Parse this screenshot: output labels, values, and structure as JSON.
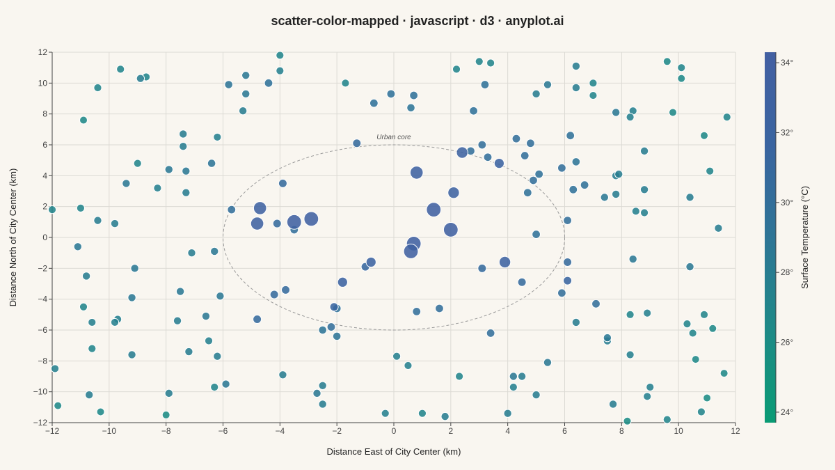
{
  "title": "scatter-color-mapped · javascript · d3 · anyplot.ai",
  "chart_data": {
    "type": "scatter",
    "xlabel": "Distance East of City Center (km)",
    "ylabel": "Distance North of City Center (km)",
    "colorbar_label": "Surface Temperature (°C)",
    "xlim": [
      -12,
      12
    ],
    "ylim": [
      -12,
      12
    ],
    "xticks": [
      "−12",
      "−10",
      "−8",
      "−6",
      "−4",
      "−2",
      "0",
      "2",
      "4",
      "6",
      "8",
      "10",
      "12"
    ],
    "yticks": [
      "−12",
      "−10",
      "−8",
      "−6",
      "−4",
      "−2",
      "0",
      "2",
      "4",
      "6",
      "8",
      "10",
      "12"
    ],
    "color_range": [
      23.7,
      34.3
    ],
    "colorbar_ticks": [
      "24°",
      "26°",
      "28°",
      "30°",
      "32°",
      "34°"
    ],
    "colormap": [
      "#0a9b74",
      "#1e8a87",
      "#2e7596",
      "#3a64a0",
      "#4360a2"
    ],
    "grid": true,
    "annotation": {
      "text": "Urban core",
      "cx": 0,
      "cy": 0,
      "rx": 6,
      "ry": 6
    },
    "points": [
      {
        "x": 0.8,
        "y": 4.2,
        "t": 33.0
      },
      {
        "x": 2.4,
        "y": 5.5,
        "t": 32.5
      },
      {
        "x": 3.7,
        "y": 4.8,
        "t": 32.0
      },
      {
        "x": 2.1,
        "y": 2.9,
        "t": 32.5
      },
      {
        "x": 1.4,
        "y": 1.8,
        "t": 33.5
      },
      {
        "x": 2.0,
        "y": 0.5,
        "t": 33.5
      },
      {
        "x": 0.7,
        "y": -0.4,
        "t": 33.5
      },
      {
        "x": 0.6,
        "y": -0.9,
        "t": 33.5
      },
      {
        "x": -0.8,
        "y": -1.6,
        "t": 32.0
      },
      {
        "x": -1.8,
        "y": -2.9,
        "t": 32.0
      },
      {
        "x": -2.1,
        "y": -4.5,
        "t": 31.5
      },
      {
        "x": -3.5,
        "y": 1.0,
        "t": 33.5
      },
      {
        "x": -2.9,
        "y": 1.2,
        "t": 33.5
      },
      {
        "x": -4.8,
        "y": 0.9,
        "t": 33.0
      },
      {
        "x": -4.7,
        "y": 1.9,
        "t": 33.0
      },
      {
        "x": 3.9,
        "y": -1.6,
        "t": 32.5
      },
      {
        "x": 6.1,
        "y": -2.8,
        "t": 31.5
      },
      {
        "x": 3.3,
        "y": 5.2,
        "t": 30.0
      },
      {
        "x": 2.7,
        "y": 5.6,
        "t": 30.0
      },
      {
        "x": 3.1,
        "y": 6.0,
        "t": 30.0
      },
      {
        "x": -1.3,
        "y": 6.1,
        "t": 30.5
      },
      {
        "x": -3.9,
        "y": 3.5,
        "t": 30.5
      },
      {
        "x": -4.1,
        "y": 0.9,
        "t": 30.5
      },
      {
        "x": -3.5,
        "y": 0.5,
        "t": 30.0
      },
      {
        "x": -5.7,
        "y": 1.8,
        "t": 30.0
      },
      {
        "x": -1.0,
        "y": -1.9,
        "t": 31.0
      },
      {
        "x": -2.0,
        "y": -4.6,
        "t": 29.5
      },
      {
        "x": -2.2,
        "y": -5.8,
        "t": 30.0
      },
      {
        "x": -2.5,
        "y": -6.0,
        "t": 29.0
      },
      {
        "x": -2.0,
        "y": -6.4,
        "t": 29.0
      },
      {
        "x": -3.8,
        "y": -3.4,
        "t": 30.5
      },
      {
        "x": -4.2,
        "y": -3.7,
        "t": 30.5
      },
      {
        "x": -4.8,
        "y": -5.3,
        "t": 30.5
      },
      {
        "x": 0.8,
        "y": -4.8,
        "t": 30.0
      },
      {
        "x": 1.6,
        "y": -4.6,
        "t": 30.0
      },
      {
        "x": 3.4,
        "y": -6.2,
        "t": 30.0
      },
      {
        "x": 3.1,
        "y": -2.0,
        "t": 30.5
      },
      {
        "x": 4.5,
        "y": -2.9,
        "t": 30.5
      },
      {
        "x": 6.1,
        "y": -1.6,
        "t": 30.5
      },
      {
        "x": 5.9,
        "y": -3.6,
        "t": 30.0
      },
      {
        "x": 7.1,
        "y": -4.3,
        "t": 30.0
      },
      {
        "x": 5.0,
        "y": 0.2,
        "t": 29.5
      },
      {
        "x": 6.1,
        "y": 1.1,
        "t": 30.0
      },
      {
        "x": 4.7,
        "y": 2.9,
        "t": 29.5
      },
      {
        "x": 4.9,
        "y": 3.7,
        "t": 30.0
      },
      {
        "x": 5.1,
        "y": 4.1,
        "t": 29.5
      },
      {
        "x": 4.6,
        "y": 5.3,
        "t": 30.0
      },
      {
        "x": 4.8,
        "y": 6.1,
        "t": 30.0
      },
      {
        "x": 4.3,
        "y": 6.4,
        "t": 30.0
      },
      {
        "x": 5.9,
        "y": 4.5,
        "t": 30.0
      },
      {
        "x": 6.3,
        "y": 3.1,
        "t": 29.5
      },
      {
        "x": 6.7,
        "y": 3.4,
        "t": 29.5
      },
      {
        "x": 6.4,
        "y": 4.9,
        "t": 29.0
      },
      {
        "x": 6.2,
        "y": 6.6,
        "t": 29.5
      },
      {
        "x": 3.2,
        "y": 9.9,
        "t": 29.5
      },
      {
        "x": 2.8,
        "y": 8.2,
        "t": 29.5
      },
      {
        "x": 0.7,
        "y": 9.2,
        "t": 29.5
      },
      {
        "x": 0.6,
        "y": 8.4,
        "t": 29.0
      },
      {
        "x": -0.1,
        "y": 9.3,
        "t": 29.5
      },
      {
        "x": -0.7,
        "y": 8.7,
        "t": 29.5
      },
      {
        "x": -4.4,
        "y": 10.0,
        "t": 29.5
      },
      {
        "x": -5.2,
        "y": 10.5,
        "t": 28.5
      },
      {
        "x": -5.2,
        "y": 9.3,
        "t": 28.5
      },
      {
        "x": -5.3,
        "y": 8.2,
        "t": 28.0
      },
      {
        "x": -5.8,
        "y": 9.9,
        "t": 29.0
      },
      {
        "x": -4.0,
        "y": 10.8,
        "t": 27.5
      },
      {
        "x": -4.0,
        "y": 11.8,
        "t": 27.0
      },
      {
        "x": -1.7,
        "y": 10.0,
        "t": 27.0
      },
      {
        "x": 2.2,
        "y": 10.9,
        "t": 27.0
      },
      {
        "x": 3.0,
        "y": 11.4,
        "t": 27.0
      },
      {
        "x": 3.4,
        "y": 11.3,
        "t": 27.0
      },
      {
        "x": 5.0,
        "y": 9.3,
        "t": 28.0
      },
      {
        "x": 5.4,
        "y": 9.9,
        "t": 28.5
      },
      {
        "x": 6.4,
        "y": 9.7,
        "t": 28.0
      },
      {
        "x": 6.4,
        "y": 11.1,
        "t": 28.0
      },
      {
        "x": 7.0,
        "y": 10.0,
        "t": 27.0
      },
      {
        "x": 7.0,
        "y": 9.2,
        "t": 27.0
      },
      {
        "x": 7.8,
        "y": 8.1,
        "t": 28.5
      },
      {
        "x": 8.4,
        "y": 8.2,
        "t": 27.5
      },
      {
        "x": 8.3,
        "y": 7.8,
        "t": 27.5
      },
      {
        "x": 9.6,
        "y": 11.4,
        "t": 26.5
      },
      {
        "x": 10.1,
        "y": 11.0,
        "t": 27.0
      },
      {
        "x": 10.1,
        "y": 10.3,
        "t": 26.5
      },
      {
        "x": 9.8,
        "y": 8.1,
        "t": 26.5
      },
      {
        "x": 10.9,
        "y": 6.6,
        "t": 26.5
      },
      {
        "x": 11.7,
        "y": 7.8,
        "t": 27.0
      },
      {
        "x": 8.8,
        "y": 5.6,
        "t": 28.0
      },
      {
        "x": 7.8,
        "y": 4.0,
        "t": 28.0
      },
      {
        "x": 7.9,
        "y": 4.1,
        "t": 28.0
      },
      {
        "x": 7.4,
        "y": 2.6,
        "t": 28.5
      },
      {
        "x": 7.8,
        "y": 2.8,
        "t": 28.0
      },
      {
        "x": 8.8,
        "y": 3.1,
        "t": 28.0
      },
      {
        "x": 8.5,
        "y": 1.7,
        "t": 27.5
      },
      {
        "x": 8.8,
        "y": 1.6,
        "t": 27.5
      },
      {
        "x": 10.4,
        "y": 2.6,
        "t": 28.0
      },
      {
        "x": 11.1,
        "y": 4.3,
        "t": 27.0
      },
      {
        "x": 11.4,
        "y": 0.6,
        "t": 28.0
      },
      {
        "x": 8.4,
        "y": -1.4,
        "t": 28.5
      },
      {
        "x": 10.4,
        "y": -1.9,
        "t": 28.5
      },
      {
        "x": 10.9,
        "y": -5.0,
        "t": 27.0
      },
      {
        "x": 10.3,
        "y": -5.6,
        "t": 27.0
      },
      {
        "x": 10.5,
        "y": -6.2,
        "t": 27.0
      },
      {
        "x": 11.2,
        "y": -5.9,
        "t": 26.5
      },
      {
        "x": 8.3,
        "y": -5.0,
        "t": 27.0
      },
      {
        "x": 8.9,
        "y": -4.9,
        "t": 27.5
      },
      {
        "x": 6.4,
        "y": -5.5,
        "t": 28.0
      },
      {
        "x": 7.5,
        "y": -6.5,
        "t": 28.5
      },
      {
        "x": 7.5,
        "y": -6.7,
        "t": 28.0
      },
      {
        "x": 8.3,
        "y": -7.6,
        "t": 27.5
      },
      {
        "x": 5.4,
        "y": -8.1,
        "t": 28.5
      },
      {
        "x": 4.2,
        "y": -9.0,
        "t": 28.5
      },
      {
        "x": 4.5,
        "y": -9.0,
        "t": 28.0
      },
      {
        "x": 4.2,
        "y": -9.7,
        "t": 27.5
      },
      {
        "x": 5.0,
        "y": -10.2,
        "t": 28.0
      },
      {
        "x": 7.7,
        "y": -10.8,
        "t": 28.0
      },
      {
        "x": 9.0,
        "y": -9.7,
        "t": 27.5
      },
      {
        "x": 8.9,
        "y": -10.3,
        "t": 27.5
      },
      {
        "x": 10.6,
        "y": -7.9,
        "t": 26.5
      },
      {
        "x": 11.6,
        "y": -8.8,
        "t": 26.5
      },
      {
        "x": 11.0,
        "y": -10.4,
        "t": 26.0
      },
      {
        "x": 10.8,
        "y": -11.3,
        "t": 27.0
      },
      {
        "x": 9.6,
        "y": -11.8,
        "t": 27.0
      },
      {
        "x": 8.2,
        "y": -11.9,
        "t": 26.0
      },
      {
        "x": 4.0,
        "y": -11.4,
        "t": 28.0
      },
      {
        "x": 1.8,
        "y": -11.6,
        "t": 28.0
      },
      {
        "x": 1.0,
        "y": -11.4,
        "t": 27.0
      },
      {
        "x": 0.5,
        "y": -8.3,
        "t": 27.5
      },
      {
        "x": 0.1,
        "y": -7.7,
        "t": 27.5
      },
      {
        "x": 2.3,
        "y": -9.0,
        "t": 27.0
      },
      {
        "x": -0.3,
        "y": -11.4,
        "t": 27.5
      },
      {
        "x": -2.5,
        "y": -9.6,
        "t": 28.0
      },
      {
        "x": -2.7,
        "y": -10.1,
        "t": 28.5
      },
      {
        "x": -2.5,
        "y": -10.8,
        "t": 28.0
      },
      {
        "x": -3.9,
        "y": -8.9,
        "t": 28.0
      },
      {
        "x": -5.9,
        "y": -9.5,
        "t": 28.5
      },
      {
        "x": -6.3,
        "y": -9.7,
        "t": 27.0
      },
      {
        "x": -6.2,
        "y": -7.7,
        "t": 28.0
      },
      {
        "x": -6.5,
        "y": -6.7,
        "t": 27.5
      },
      {
        "x": -6.6,
        "y": -5.1,
        "t": 28.5
      },
      {
        "x": -6.1,
        "y": -3.8,
        "t": 28.5
      },
      {
        "x": -6.3,
        "y": -0.9,
        "t": 28.5
      },
      {
        "x": -7.1,
        "y": -1.0,
        "t": 28.0
      },
      {
        "x": -7.5,
        "y": -3.5,
        "t": 28.5
      },
      {
        "x": -7.6,
        "y": -5.4,
        "t": 28.0
      },
      {
        "x": -7.2,
        "y": -7.4,
        "t": 28.0
      },
      {
        "x": -7.9,
        "y": -10.1,
        "t": 28.0
      },
      {
        "x": -8.0,
        "y": -11.5,
        "t": 26.0
      },
      {
        "x": -9.2,
        "y": -7.6,
        "t": 28.0
      },
      {
        "x": -9.7,
        "y": -5.3,
        "t": 27.5
      },
      {
        "x": -9.8,
        "y": -5.5,
        "t": 27.5
      },
      {
        "x": -9.2,
        "y": -3.9,
        "t": 28.5
      },
      {
        "x": -9.1,
        "y": -2.0,
        "t": 28.5
      },
      {
        "x": -10.8,
        "y": -2.5,
        "t": 28.0
      },
      {
        "x": -10.9,
        "y": -4.5,
        "t": 27.0
      },
      {
        "x": -10.6,
        "y": -5.5,
        "t": 27.5
      },
      {
        "x": -10.6,
        "y": -7.2,
        "t": 27.0
      },
      {
        "x": -10.7,
        "y": -10.2,
        "t": 28.0
      },
      {
        "x": -10.3,
        "y": -11.3,
        "t": 26.5
      },
      {
        "x": -11.9,
        "y": -8.5,
        "t": 27.5
      },
      {
        "x": -11.8,
        "y": -10.9,
        "t": 26.5
      },
      {
        "x": -11.1,
        "y": -0.6,
        "t": 28.5
      },
      {
        "x": -10.4,
        "y": 1.1,
        "t": 28.0
      },
      {
        "x": -11.0,
        "y": 1.9,
        "t": 27.0
      },
      {
        "x": -12.0,
        "y": 1.8,
        "t": 27.0
      },
      {
        "x": -9.8,
        "y": 0.9,
        "t": 28.0
      },
      {
        "x": -9.4,
        "y": 3.5,
        "t": 28.5
      },
      {
        "x": -9.0,
        "y": 4.8,
        "t": 27.0
      },
      {
        "x": -8.3,
        "y": 3.2,
        "t": 27.5
      },
      {
        "x": -7.9,
        "y": 4.4,
        "t": 28.5
      },
      {
        "x": -7.3,
        "y": 4.3,
        "t": 28.5
      },
      {
        "x": -7.3,
        "y": 2.9,
        "t": 28.0
      },
      {
        "x": -6.4,
        "y": 4.8,
        "t": 29.0
      },
      {
        "x": -7.4,
        "y": 5.9,
        "t": 28.0
      },
      {
        "x": -7.4,
        "y": 6.7,
        "t": 28.0
      },
      {
        "x": -6.2,
        "y": 6.5,
        "t": 27.5
      },
      {
        "x": -10.9,
        "y": 7.6,
        "t": 26.5
      },
      {
        "x": -10.4,
        "y": 9.7,
        "t": 27.0
      },
      {
        "x": -9.6,
        "y": 10.9,
        "t": 27.0
      },
      {
        "x": -8.9,
        "y": 10.3,
        "t": 28.0
      },
      {
        "x": -8.7,
        "y": 10.4,
        "t": 27.0
      }
    ]
  }
}
